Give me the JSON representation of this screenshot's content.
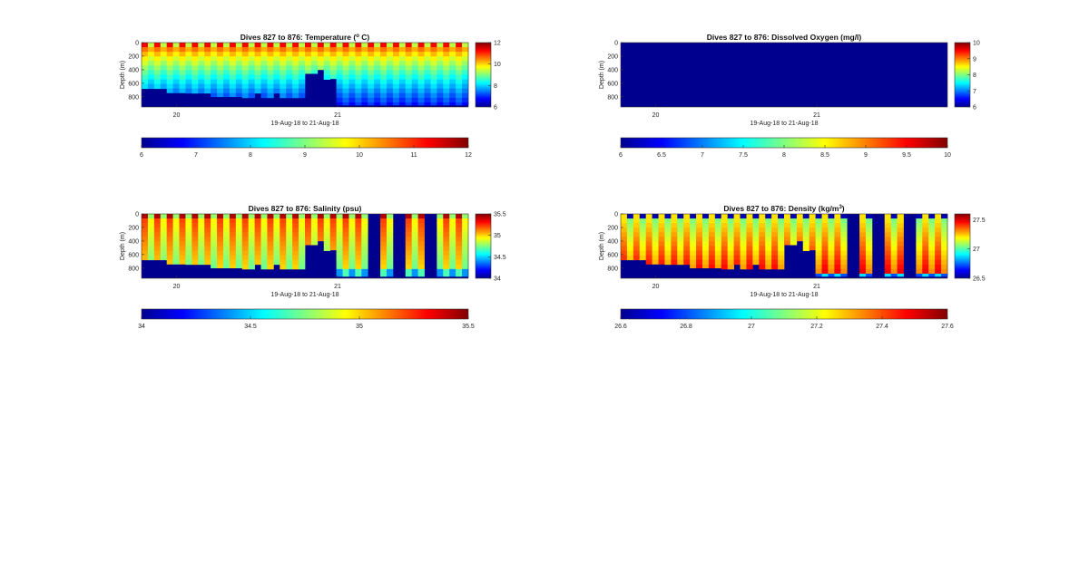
{
  "figure": {
    "date_range_label": "19-Aug-18 to 21-Aug-18"
  },
  "chart_data": [
    {
      "type": "heatmap",
      "title_prefix": "Dives 827 to 876: Temperature (",
      "title_sup": "o",
      "title_suffix": " C)",
      "ylabel": "Depth (m)",
      "xlabel": "19-Aug-18 to 21-Aug-18",
      "x_ticks": [
        "20",
        "21"
      ],
      "y_ticks": [
        0,
        200,
        400,
        600,
        800
      ],
      "ylim": [
        0,
        950
      ],
      "colorbar_ticks": [
        6,
        8,
        10,
        12
      ],
      "colorbar_range": [
        6,
        12
      ],
      "hbar_ticks": [
        "6",
        "7",
        "8",
        "9",
        "10",
        "11",
        "12"
      ],
      "pattern": "temperature",
      "colormap": "jet"
    },
    {
      "type": "heatmap",
      "title_prefix": "Dives 827 to 876: Dissolved Oxygen (mg/l)",
      "title_sup": "",
      "title_suffix": "",
      "ylabel": "Depth (m)",
      "xlabel": "19-Aug-18 to 21-Aug-18",
      "x_ticks": [
        "20",
        "21"
      ],
      "y_ticks": [
        0,
        200,
        400,
        600,
        800
      ],
      "ylim": [
        0,
        950
      ],
      "colorbar_ticks": [
        6,
        7,
        8,
        9,
        10
      ],
      "colorbar_range": [
        6,
        10
      ],
      "hbar_ticks": [
        "6",
        "6.5",
        "7",
        "7.5",
        "8",
        "8.5",
        "9",
        "9.5",
        "10"
      ],
      "pattern": "uniform",
      "colormap": "jet"
    },
    {
      "type": "heatmap",
      "title_prefix": "Dives 827 to 876: Salinity (psu)",
      "title_sup": "",
      "title_suffix": "",
      "ylabel": "Depth (m)",
      "xlabel": "19-Aug-18 to 21-Aug-18",
      "x_ticks": [
        "20",
        "21"
      ],
      "y_ticks": [
        0,
        200,
        400,
        600,
        800
      ],
      "ylim": [
        0,
        950
      ],
      "colorbar_ticks": [
        34,
        34.5,
        35,
        35.5
      ],
      "colorbar_range": [
        34,
        35.5
      ],
      "hbar_ticks": [
        "34",
        "34.5",
        "35",
        "35.5"
      ],
      "pattern": "salinity",
      "colormap": "jet"
    },
    {
      "type": "heatmap",
      "title_prefix": "Dives 827 to 876: Density (kg/m",
      "title_sup": "3",
      "title_suffix": ")",
      "ylabel": "Depth (m)",
      "xlabel": "19-Aug-18 to 21-Aug-18",
      "x_ticks": [
        "20",
        "21"
      ],
      "y_ticks": [
        0,
        200,
        400,
        600,
        800
      ],
      "ylim": [
        0,
        950
      ],
      "colorbar_ticks": [
        26.5,
        27,
        27.5
      ],
      "colorbar_range": [
        26.5,
        27.6
      ],
      "hbar_ticks": [
        "26.6",
        "26.8",
        "27",
        "27.2",
        "27.4",
        "27.6"
      ],
      "pattern": "density",
      "colormap": "jet"
    }
  ]
}
